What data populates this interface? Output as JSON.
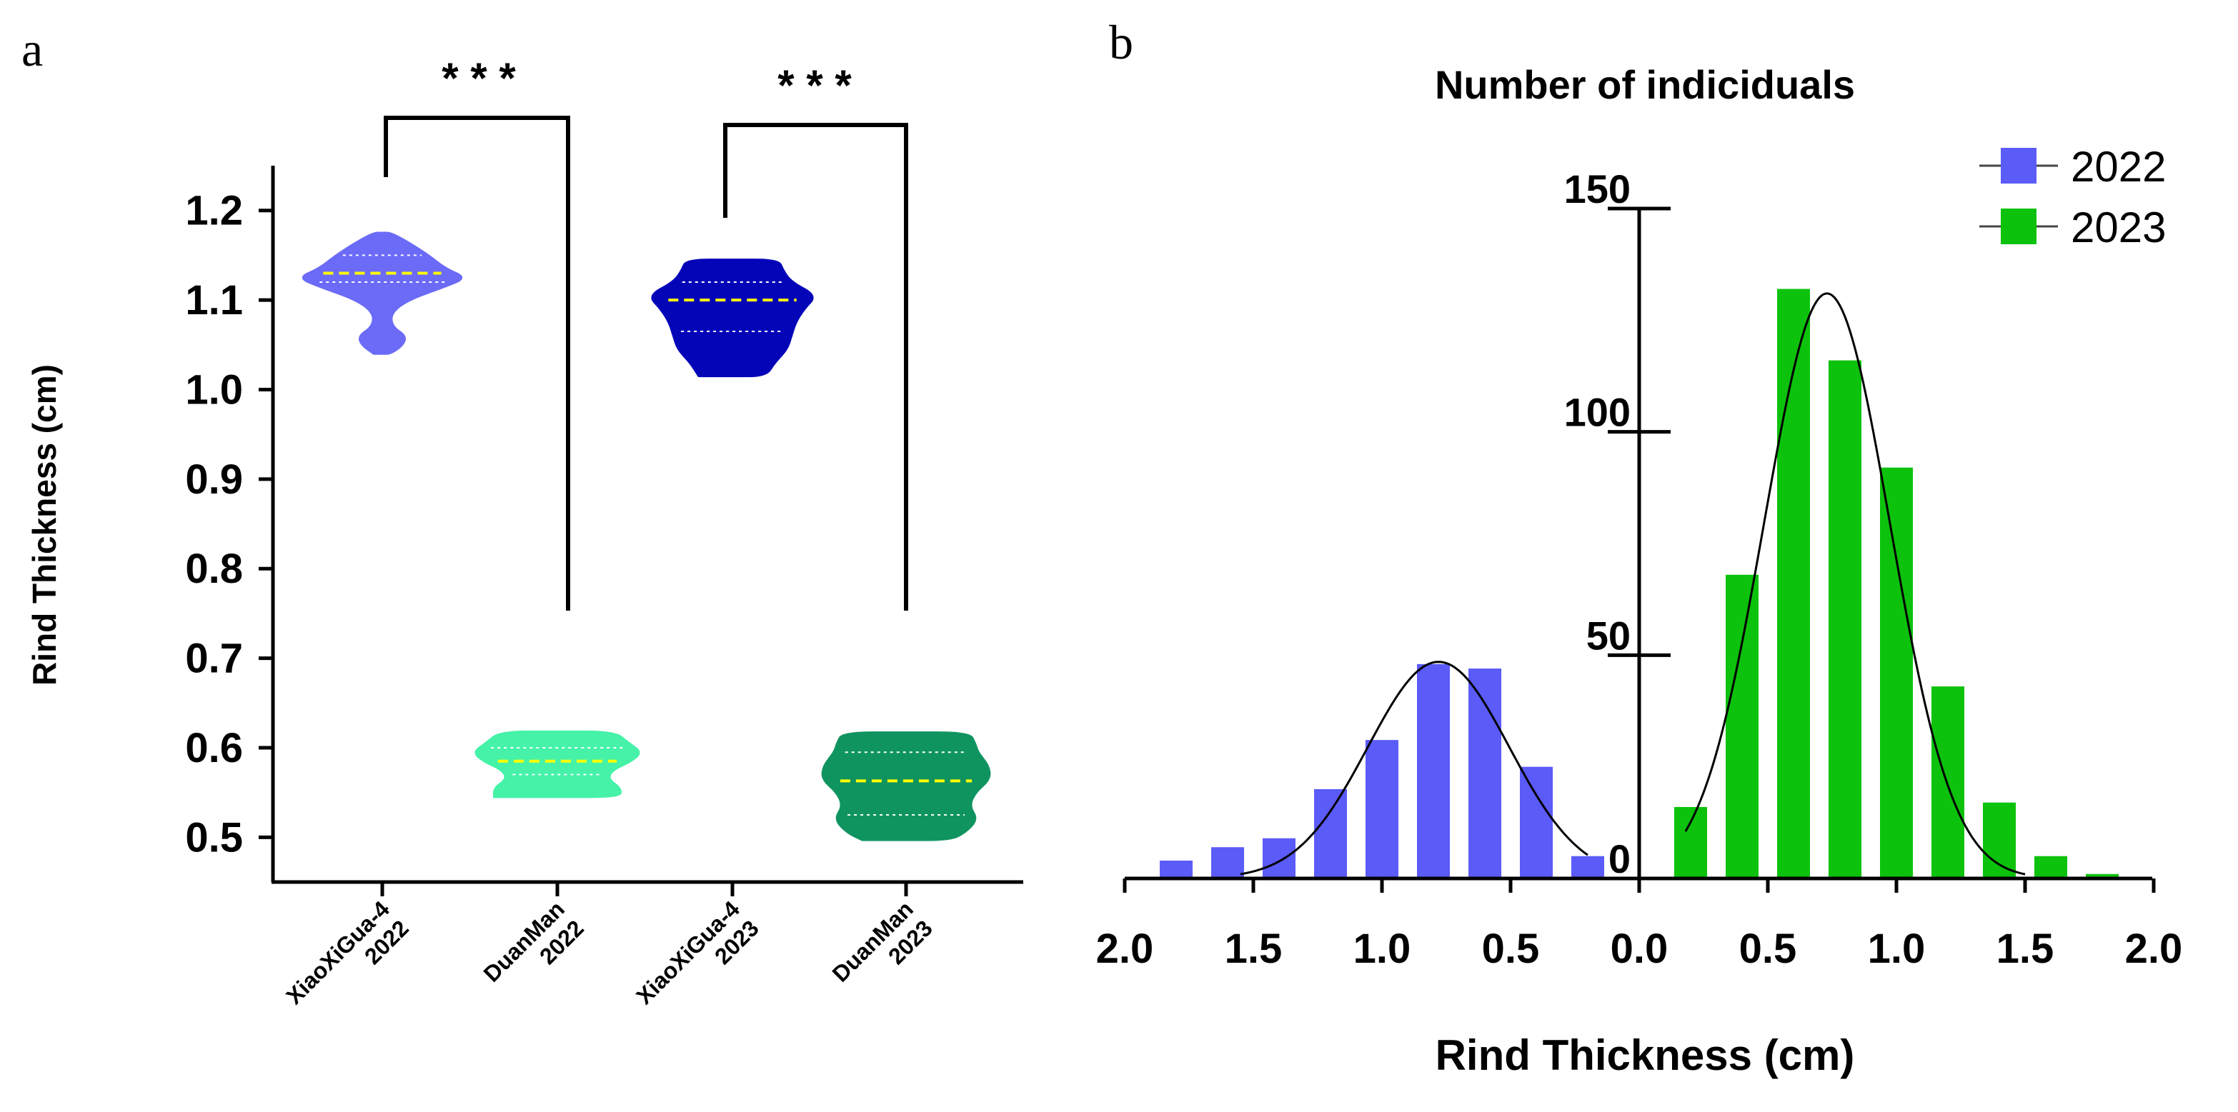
{
  "colors": {
    "xiao_2022": "#6b6bf7",
    "duan_2022": "#45f2a8",
    "xiao_2023": "#0505b8",
    "duan_2023": "#0f9460",
    "median_line": "#ffff00",
    "bar_2022": "#5b5bf8",
    "bar_2023": "#0dc20d",
    "axis": "#000000"
  },
  "chart_data": [
    {
      "panel": "a",
      "type": "violin",
      "ylabel": "Rind Thickness (cm)",
      "ylim": [
        0.45,
        1.25
      ],
      "yticks": [
        "0.5",
        "0.6",
        "0.7",
        "0.8",
        "0.9",
        "1.0",
        "1.1",
        "1.2"
      ],
      "groups": [
        {
          "name": "XiaoXiGua-4",
          "year": "2022",
          "color_key": "xiao_2022",
          "min": 1.04,
          "max": 1.175,
          "q1": 1.12,
          "median": 1.13,
          "q3": 1.15,
          "profile": [
            [
              1.04,
              0.1
            ],
            [
              1.05,
              0.25
            ],
            [
              1.06,
              0.28
            ],
            [
              1.07,
              0.12
            ],
            [
              1.085,
              0.1
            ],
            [
              1.1,
              0.3
            ],
            [
              1.115,
              0.75
            ],
            [
              1.125,
              1.0
            ],
            [
              1.135,
              0.75
            ],
            [
              1.15,
              0.55
            ],
            [
              1.165,
              0.3
            ],
            [
              1.175,
              0.1
            ]
          ]
        },
        {
          "name": "DuanMan",
          "year": "2022",
          "color_key": "duan_2022",
          "min": 0.545,
          "max": 0.618,
          "q1": 0.57,
          "median": 0.585,
          "q3": 0.6,
          "profile": [
            [
              0.545,
              0.75
            ],
            [
              0.555,
              0.75
            ],
            [
              0.565,
              0.6
            ],
            [
              0.575,
              0.65
            ],
            [
              0.585,
              0.88
            ],
            [
              0.595,
              1.0
            ],
            [
              0.605,
              0.85
            ],
            [
              0.618,
              0.68
            ]
          ]
        },
        {
          "name": "XiaoXiGua-4",
          "year": "2023",
          "color_key": "xiao_2023",
          "min": 1.015,
          "max": 1.145,
          "q1": 1.065,
          "median": 1.1,
          "q3": 1.12,
          "profile": [
            [
              1.015,
              0.4
            ],
            [
              1.03,
              0.5
            ],
            [
              1.045,
              0.65
            ],
            [
              1.06,
              0.7
            ],
            [
              1.075,
              0.75
            ],
            [
              1.09,
              0.85
            ],
            [
              1.105,
              1.0
            ],
            [
              1.12,
              0.7
            ],
            [
              1.133,
              0.6
            ],
            [
              1.145,
              0.55
            ]
          ]
        },
        {
          "name": "DuanMan",
          "year": "2023",
          "color_key": "duan_2023",
          "min": 0.497,
          "max": 0.617,
          "q1": 0.525,
          "median": 0.563,
          "q3": 0.595,
          "profile": [
            [
              0.497,
              0.52
            ],
            [
              0.505,
              0.7
            ],
            [
              0.52,
              0.85
            ],
            [
              0.535,
              0.75
            ],
            [
              0.55,
              0.82
            ],
            [
              0.565,
              1.0
            ],
            [
              0.58,
              0.98
            ],
            [
              0.595,
              0.85
            ],
            [
              0.605,
              0.82
            ],
            [
              0.617,
              0.75
            ]
          ]
        }
      ],
      "significance": [
        {
          "label": "* * *",
          "pair": [
            0,
            1
          ]
        },
        {
          "label": "* * *",
          "pair": [
            2,
            3
          ]
        }
      ]
    },
    {
      "panel": "b",
      "type": "bar",
      "title": "Number of indiciduals",
      "xlabel": "Rind Thickness (cm)",
      "left_xticks": [
        "2.0",
        "1.5",
        "1.0",
        "0.5",
        "0.0"
      ],
      "right_xticks": [
        "0.5",
        "1.0",
        "1.5",
        "2.0"
      ],
      "ylim": [
        0,
        150
      ],
      "yticks": [
        "0",
        "50",
        "100",
        "150"
      ],
      "series": [
        {
          "name": "2022",
          "color_key": "bar_2022",
          "direction": "left",
          "x": [
            0.2,
            0.4,
            0.6,
            0.8,
            1.0,
            1.2,
            1.4,
            1.6,
            1.8
          ],
          "values": [
            5,
            25,
            47,
            48,
            31,
            20,
            9,
            7,
            4
          ],
          "fit": {
            "mean": 0.78,
            "peak": 48.5,
            "sd": 0.275
          }
        },
        {
          "name": "2023",
          "color_key": "bar_2023",
          "direction": "right",
          "x": [
            0.2,
            0.4,
            0.6,
            0.8,
            1.0,
            1.2,
            1.4,
            1.6,
            1.8
          ],
          "values": [
            16,
            68,
            132,
            116,
            92,
            43,
            17,
            5,
            1
          ],
          "fit": {
            "mean": 0.73,
            "peak": 131,
            "sd": 0.245
          }
        }
      ]
    }
  ],
  "panel_labels": {
    "a": "a",
    "b": "b"
  }
}
